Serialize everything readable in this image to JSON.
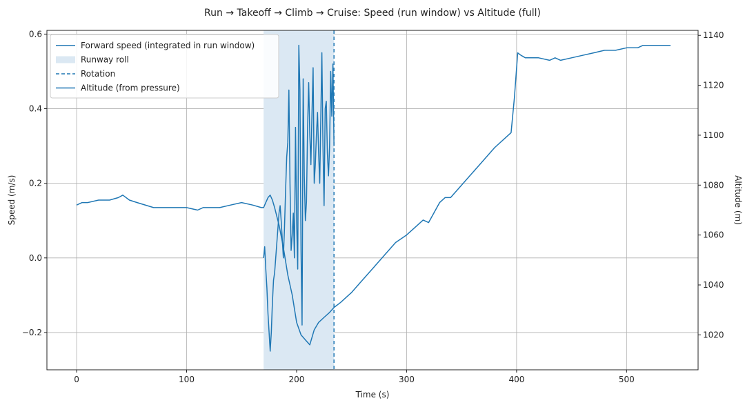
{
  "chart_data": {
    "type": "line",
    "title": "Run → Takeoff → Climb → Cruise: Speed (run window) vs Altitude (full)",
    "xlabel": "Time (s)",
    "ylabel_left": "Speed (m/s)",
    "ylabel_right": "Altitude (m)",
    "xlim": [
      -27,
      565
    ],
    "ylim_left": [
      -0.3,
      0.61
    ],
    "ylim_right": [
      1006,
      1142
    ],
    "x_ticks": [
      0,
      100,
      200,
      300,
      400,
      500
    ],
    "x_tick_labels": [
      "0",
      "100",
      "200",
      "300",
      "400",
      "500"
    ],
    "y_left_ticks": [
      -0.2,
      0.0,
      0.2,
      0.4,
      0.6
    ],
    "y_left_tick_labels": [
      "−0.2",
      "0.0",
      "0.2",
      "0.4",
      "0.6"
    ],
    "y_right_ticks": [
      1020,
      1040,
      1060,
      1080,
      1100,
      1120,
      1140
    ],
    "y_right_tick_labels": [
      "1020",
      "1040",
      "1060",
      "1080",
      "1100",
      "1120",
      "1140"
    ],
    "grid": true,
    "legend_position": "top-left",
    "legend": [
      {
        "label": "Forward speed (integrated in run window)",
        "kind": "line"
      },
      {
        "label": "Runway roll",
        "kind": "patch"
      },
      {
        "label": "Rotation",
        "kind": "dashed"
      },
      {
        "label": "Altitude (from pressure)",
        "kind": "line"
      }
    ],
    "colors": {
      "line": "#1f77b4",
      "span": "#dbe8f3",
      "grid": "#b0b0b0"
    },
    "runway_roll": [
      170,
      234
    ],
    "rotation_x": 234,
    "series": [
      {
        "name": "Forward speed (integrated in run window)",
        "axis": "left",
        "x": [
          170,
          171,
          172,
          173,
          174,
          175,
          176,
          177,
          178,
          179,
          180,
          181,
          182,
          183,
          184,
          185,
          186,
          187,
          188,
          189,
          190,
          191,
          192,
          193,
          194,
          195,
          196,
          197,
          198,
          199,
          200,
          201,
          202,
          203,
          204,
          205,
          206,
          207,
          208,
          209,
          210,
          211,
          212,
          213,
          214,
          215,
          216,
          217,
          218,
          219,
          220,
          221,
          222,
          223,
          224,
          225,
          226,
          227,
          228,
          229,
          230,
          231,
          232,
          233,
          234
        ],
        "y": [
          0.0,
          0.03,
          -0.03,
          -0.08,
          -0.15,
          -0.2,
          -0.25,
          -0.2,
          -0.12,
          -0.06,
          -0.04,
          0.0,
          0.04,
          0.08,
          0.12,
          0.14,
          0.1,
          0.05,
          0.0,
          0.08,
          0.18,
          0.27,
          0.31,
          0.45,
          0.2,
          0.02,
          0.06,
          0.12,
          0.0,
          0.35,
          0.1,
          -0.03,
          0.57,
          0.45,
          0.02,
          -0.18,
          0.48,
          0.22,
          0.1,
          0.15,
          0.35,
          0.47,
          0.33,
          0.25,
          0.39,
          0.51,
          0.2,
          0.25,
          0.33,
          0.39,
          0.28,
          0.2,
          0.38,
          0.55,
          0.3,
          0.14,
          0.4,
          0.42,
          0.28,
          0.22,
          0.3,
          0.5,
          0.38,
          0.52,
          0.3
        ]
      },
      {
        "name": "Altitude (from pressure)",
        "axis": "right",
        "x": [
          0,
          5,
          10,
          20,
          30,
          38,
          42,
          48,
          55,
          70,
          90,
          100,
          110,
          115,
          120,
          130,
          140,
          150,
          160,
          168,
          170,
          172,
          174,
          176,
          178,
          180,
          184,
          188,
          192,
          196,
          200,
          204,
          208,
          212,
          216,
          220,
          225,
          230,
          234,
          240,
          250,
          260,
          270,
          280,
          290,
          300,
          310,
          315,
          320,
          325,
          330,
          335,
          340,
          350,
          360,
          370,
          380,
          390,
          395,
          398,
          401,
          404,
          408,
          412,
          420,
          430,
          435,
          440,
          450,
          460,
          470,
          480,
          490,
          500,
          510,
          515,
          520,
          530,
          540
        ],
        "y": [
          1072,
          1073,
          1073,
          1074,
          1074,
          1075,
          1076,
          1074,
          1073,
          1071,
          1071,
          1071,
          1070,
          1071,
          1071,
          1071,
          1072,
          1073,
          1072,
          1071,
          1071,
          1073,
          1075,
          1076,
          1074,
          1071,
          1064,
          1055,
          1044,
          1036,
          1025,
          1020,
          1018,
          1016,
          1022,
          1025,
          1027,
          1029,
          1031,
          1033,
          1037,
          1042,
          1047,
          1052,
          1057,
          1060,
          1064,
          1066,
          1065,
          1069,
          1073,
          1075,
          1075,
          1080,
          1085,
          1090,
          1095,
          1099,
          1101,
          1115,
          1133,
          1132,
          1131,
          1131,
          1131,
          1130,
          1131,
          1130,
          1131,
          1132,
          1133,
          1134,
          1134,
          1135,
          1135,
          1136,
          1136,
          1136,
          1136
        ]
      }
    ]
  }
}
